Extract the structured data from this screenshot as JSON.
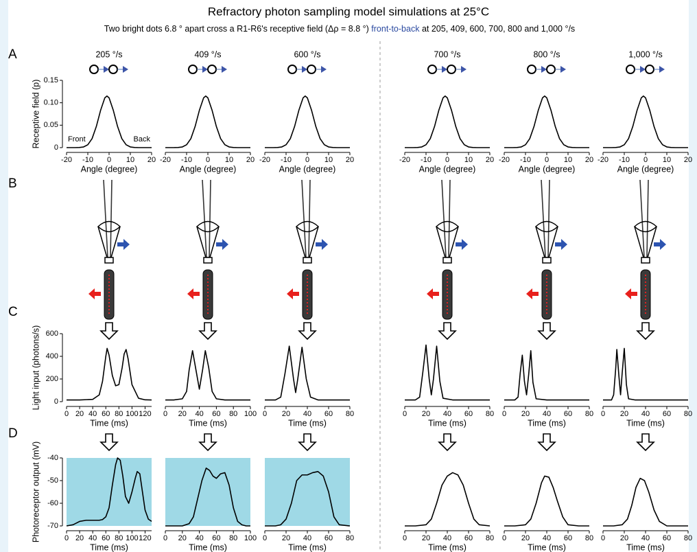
{
  "title": "Refractory photon sampling model simulations at 25°C",
  "subtitle": [
    "Two bright dots 6.8 ° apart cross a R1-R6's receptive field (Δρ = 8.8 °)",
    "front-to-back",
    "at 205, 409, 600, 700, 800 and 1,000 °/s"
  ],
  "panels": [
    "A",
    "B",
    "C",
    "D"
  ],
  "chart_data": [
    {
      "type": "line",
      "header": "205 °/s",
      "ylabel": "Receptive field (p)",
      "xlabel": "Angle (degree)",
      "annotations": [
        "Front",
        "Back"
      ],
      "color": "#000000",
      "xlim": [
        -20,
        20
      ],
      "xticks": [
        -20,
        -10,
        0,
        10,
        20
      ],
      "ylim": [
        0,
        0.15
      ],
      "yticks": [
        0,
        0.05,
        {
          "value": 0.1,
          "label": "0.10"
        },
        0.15
      ],
      "x": [
        -20,
        -18,
        -16,
        -14,
        -12,
        -10,
        -8,
        -6,
        -4,
        -2,
        -1,
        0,
        2,
        4,
        6,
        8,
        10,
        12,
        14,
        16,
        18,
        20
      ],
      "values": [
        0,
        0,
        0,
        0.0003,
        0.0015,
        0.0064,
        0.02,
        0.047,
        0.083,
        0.111,
        0.115,
        0.111,
        0.083,
        0.047,
        0.02,
        0.0064,
        0.0015,
        0.0003,
        0,
        0,
        0,
        0
      ]
    },
    {
      "type": "line",
      "header": "409 °/s",
      "xlabel": "Angle (degree)",
      "color": "#000000",
      "xlim": [
        -20,
        20
      ],
      "xticks": [
        -20,
        -10,
        0,
        10,
        20
      ],
      "ylim": [
        0,
        0.15
      ],
      "x": [
        -20,
        -18,
        -16,
        -14,
        -12,
        -10,
        -8,
        -6,
        -4,
        -2,
        -1,
        0,
        2,
        4,
        6,
        8,
        10,
        12,
        14,
        16,
        18,
        20
      ],
      "values": [
        0,
        0,
        0,
        0.0003,
        0.0015,
        0.0064,
        0.02,
        0.047,
        0.083,
        0.111,
        0.115,
        0.111,
        0.083,
        0.047,
        0.02,
        0.0064,
        0.0015,
        0.0003,
        0,
        0,
        0,
        0
      ]
    },
    {
      "type": "line",
      "header": "600 °/s",
      "xlabel": "Angle (degree)",
      "color": "#000000",
      "xlim": [
        -20,
        20
      ],
      "xticks": [
        -20,
        -10,
        0,
        10,
        20
      ],
      "ylim": [
        0,
        0.15
      ],
      "x": [
        -20,
        -18,
        -16,
        -14,
        -12,
        -10,
        -8,
        -6,
        -4,
        -2,
        -1,
        0,
        2,
        4,
        6,
        8,
        10,
        12,
        14,
        16,
        18,
        20
      ],
      "values": [
        0,
        0,
        0,
        0.0003,
        0.0015,
        0.0064,
        0.02,
        0.047,
        0.083,
        0.111,
        0.115,
        0.111,
        0.083,
        0.047,
        0.02,
        0.0064,
        0.0015,
        0.0003,
        0,
        0,
        0,
        0
      ]
    },
    {
      "type": "line",
      "header": "700 °/s",
      "xlabel": "Angle (degree)",
      "color": "#000000",
      "xlim": [
        -20,
        20
      ],
      "xticks": [
        -20,
        -10,
        0,
        10,
        20
      ],
      "ylim": [
        0,
        0.15
      ],
      "x": [
        -20,
        -18,
        -16,
        -14,
        -12,
        -10,
        -8,
        -6,
        -4,
        -2,
        -1,
        0,
        2,
        4,
        6,
        8,
        10,
        12,
        14,
        16,
        18,
        20
      ],
      "values": [
        0,
        0,
        0,
        0.0003,
        0.0015,
        0.0064,
        0.02,
        0.047,
        0.083,
        0.111,
        0.115,
        0.111,
        0.083,
        0.047,
        0.02,
        0.0064,
        0.0015,
        0.0003,
        0,
        0,
        0,
        0
      ]
    },
    {
      "type": "line",
      "header": "800 °/s",
      "xlabel": "Angle (degree)",
      "color": "#000000",
      "xlim": [
        -20,
        20
      ],
      "xticks": [
        -20,
        -10,
        0,
        10,
        20
      ],
      "ylim": [
        0,
        0.15
      ],
      "x": [
        -20,
        -18,
        -16,
        -14,
        -12,
        -10,
        -8,
        -6,
        -4,
        -2,
        -1,
        0,
        2,
        4,
        6,
        8,
        10,
        12,
        14,
        16,
        18,
        20
      ],
      "values": [
        0,
        0,
        0,
        0.0003,
        0.0015,
        0.0064,
        0.02,
        0.047,
        0.083,
        0.111,
        0.115,
        0.111,
        0.083,
        0.047,
        0.02,
        0.0064,
        0.0015,
        0.0003,
        0,
        0,
        0,
        0
      ]
    },
    {
      "type": "line",
      "header": "1,000 °/s",
      "xlabel": "Angle (degree)",
      "color": "#000000",
      "xlim": [
        -20,
        20
      ],
      "xticks": [
        -20,
        -10,
        0,
        10,
        20
      ],
      "ylim": [
        0,
        0.15
      ],
      "x": [
        -20,
        -18,
        -16,
        -14,
        -12,
        -10,
        -8,
        -6,
        -4,
        -2,
        -1,
        0,
        2,
        4,
        6,
        8,
        10,
        12,
        14,
        16,
        18,
        20
      ],
      "values": [
        0,
        0,
        0,
        0.0003,
        0.0015,
        0.0064,
        0.02,
        0.047,
        0.083,
        0.111,
        0.115,
        0.111,
        0.083,
        0.047,
        0.02,
        0.0064,
        0.0015,
        0.0003,
        0,
        0,
        0,
        0
      ]
    },
    {
      "type": "line",
      "ylabel": "Light input (photons/s)",
      "xlabel": "Time (ms)",
      "color": "#000000",
      "xlim": [
        0,
        130
      ],
      "xticks": [
        0,
        20,
        40,
        60,
        80,
        100,
        120
      ],
      "ylim": [
        0,
        600
      ],
      "yticks": [
        0,
        200,
        400,
        600
      ],
      "x": [
        0,
        20,
        40,
        50,
        55,
        60,
        62,
        65,
        70,
        75,
        80,
        85,
        88,
        91,
        94,
        100,
        110,
        120,
        130
      ],
      "values": [
        15,
        15,
        20,
        60,
        180,
        400,
        470,
        410,
        230,
        140,
        150,
        300,
        420,
        460,
        380,
        150,
        30,
        16,
        15
      ]
    },
    {
      "type": "line",
      "xlabel": "Time (ms)",
      "color": "#000000",
      "xlim": [
        0,
        100
      ],
      "xticks": [
        0,
        20,
        40,
        60,
        80,
        100
      ],
      "ylim": [
        0,
        600
      ],
      "x": [
        0,
        10,
        20,
        25,
        28,
        32,
        36,
        40,
        44,
        47,
        51,
        55,
        60,
        70,
        80,
        100
      ],
      "values": [
        15,
        15,
        25,
        90,
        280,
        450,
        280,
        110,
        290,
        450,
        300,
        90,
        25,
        15,
        15,
        15
      ]
    },
    {
      "type": "line",
      "xlabel": "Time (ms)",
      "color": "#000000",
      "xlim": [
        0,
        80
      ],
      "xticks": [
        0,
        20,
        40,
        60,
        80
      ],
      "ylim": [
        0,
        600
      ],
      "x": [
        0,
        10,
        15,
        19,
        23,
        27,
        29,
        31,
        35,
        39,
        43,
        50,
        60,
        80
      ],
      "values": [
        15,
        15,
        40,
        250,
        490,
        200,
        80,
        200,
        480,
        200,
        40,
        15,
        15,
        15
      ]
    },
    {
      "type": "line",
      "xlabel": "Time (ms)",
      "color": "#000000",
      "xlim": [
        0,
        80
      ],
      "xticks": [
        0,
        20,
        40,
        60,
        80
      ],
      "ylim": [
        0,
        600
      ],
      "x": [
        0,
        10,
        14,
        17,
        20,
        23,
        25,
        27,
        30,
        33,
        36,
        45,
        80
      ],
      "values": [
        15,
        15,
        40,
        260,
        500,
        200,
        60,
        200,
        490,
        180,
        30,
        15,
        15
      ]
    },
    {
      "type": "line",
      "xlabel": "Time (ms)",
      "color": "#000000",
      "xlim": [
        0,
        80
      ],
      "xticks": [
        0,
        20,
        40,
        60,
        80
      ],
      "ylim": [
        0,
        600
      ],
      "x": [
        0,
        10,
        13,
        15,
        17,
        19,
        21,
        23,
        25,
        27,
        30,
        40,
        80
      ],
      "values": [
        15,
        15,
        40,
        250,
        410,
        180,
        60,
        240,
        450,
        170,
        25,
        15,
        15
      ]
    },
    {
      "type": "line",
      "xlabel": "Time (ms)",
      "color": "#000000",
      "xlim": [
        0,
        80
      ],
      "xticks": [
        0,
        20,
        40,
        60,
        80
      ],
      "ylim": [
        0,
        600
      ],
      "x": [
        0,
        8,
        10,
        12,
        13,
        15,
        16.5,
        18,
        20,
        22,
        24,
        30,
        80
      ],
      "values": [
        15,
        15,
        60,
        300,
        460,
        220,
        60,
        250,
        470,
        150,
        25,
        15,
        15
      ]
    },
    {
      "type": "line",
      "ylabel": "Photoreceptor output (mV)",
      "xlabel": "Time (ms)",
      "color": "#000000",
      "background": "#9fd9e6",
      "xlim": [
        0,
        130
      ],
      "xticks": [
        0,
        20,
        40,
        60,
        80,
        100,
        120
      ],
      "ylim": [
        -70,
        -40
      ],
      "yticks": [
        -70,
        -60,
        -50,
        -40
      ],
      "x": [
        0,
        10,
        20,
        30,
        40,
        50,
        55,
        60,
        65,
        70,
        75,
        78,
        82,
        86,
        90,
        95,
        100,
        105,
        108,
        112,
        116,
        120,
        125,
        130
      ],
      "values": [
        -70,
        -69.5,
        -68,
        -67.5,
        -67.5,
        -67.5,
        -67.2,
        -66,
        -62,
        -52,
        -43,
        -40,
        -41,
        -48,
        -57,
        -60,
        -55,
        -49,
        -46,
        -47,
        -55,
        -63,
        -67,
        -68
      ]
    },
    {
      "type": "line",
      "xlabel": "Time (ms)",
      "color": "#000000",
      "background": "#9fd9e6",
      "xlim": [
        0,
        100
      ],
      "xticks": [
        0,
        20,
        40,
        60,
        80,
        100
      ],
      "ylim": [
        -70,
        -40
      ],
      "x": [
        0,
        20,
        28,
        33,
        38,
        43,
        48,
        52,
        56,
        60,
        65,
        70,
        75,
        80,
        85,
        90,
        95,
        100
      ],
      "values": [
        -70,
        -70,
        -69,
        -66,
        -58,
        -50,
        -44.5,
        -45.5,
        -48,
        -49,
        -47,
        -46.5,
        -52,
        -62,
        -68,
        -69.5,
        -70,
        -70
      ]
    },
    {
      "type": "line",
      "xlabel": "Time (ms)",
      "color": "#000000",
      "background": "#9fd9e6",
      "xlim": [
        0,
        80
      ],
      "xticks": [
        0,
        20,
        40,
        60,
        80
      ],
      "ylim": [
        -70,
        -40
      ],
      "x": [
        0,
        10,
        15,
        20,
        25,
        30,
        35,
        40,
        45,
        50,
        55,
        60,
        65,
        70,
        80
      ],
      "values": [
        -70,
        -70,
        -69.5,
        -67,
        -60,
        -50,
        -47.5,
        -47.5,
        -46.5,
        -46,
        -48,
        -55,
        -66,
        -69.5,
        -70
      ]
    },
    {
      "type": "line",
      "xlabel": "Time (ms)",
      "color": "#000000",
      "xlim": [
        0,
        80
      ],
      "xticks": [
        0,
        20,
        40,
        60,
        80
      ],
      "ylim": [
        -70,
        -40
      ],
      "x": [
        0,
        10,
        20,
        25,
        30,
        35,
        40,
        45,
        50,
        55,
        60,
        65,
        70,
        80
      ],
      "values": [
        -70,
        -70,
        -69.5,
        -67,
        -60,
        -52,
        -48,
        -46.5,
        -47.5,
        -52,
        -60,
        -67,
        -69.5,
        -70
      ]
    },
    {
      "type": "line",
      "xlabel": "Time (ms)",
      "color": "#000000",
      "xlim": [
        0,
        80
      ],
      "xticks": [
        0,
        20,
        40,
        60,
        80
      ],
      "ylim": [
        -70,
        -40
      ],
      "x": [
        0,
        10,
        20,
        25,
        30,
        35,
        38,
        42,
        46,
        50,
        55,
        60,
        70,
        80
      ],
      "values": [
        -70,
        -70,
        -69.5,
        -67,
        -60,
        -51,
        -48,
        -48.5,
        -53,
        -59,
        -66,
        -69.5,
        -70,
        -70
      ]
    },
    {
      "type": "line",
      "xlabel": "Time (ms)",
      "color": "#000000",
      "xlim": [
        0,
        80
      ],
      "xticks": [
        0,
        20,
        40,
        60,
        80
      ],
      "ylim": [
        -70,
        -40
      ],
      "x": [
        0,
        10,
        18,
        23,
        27,
        31,
        35,
        39,
        43,
        48,
        53,
        60,
        70,
        80
      ],
      "values": [
        -70,
        -70,
        -69.5,
        -67,
        -61,
        -53,
        -49,
        -50,
        -55,
        -63,
        -68,
        -70,
        -70,
        -70
      ]
    }
  ]
}
